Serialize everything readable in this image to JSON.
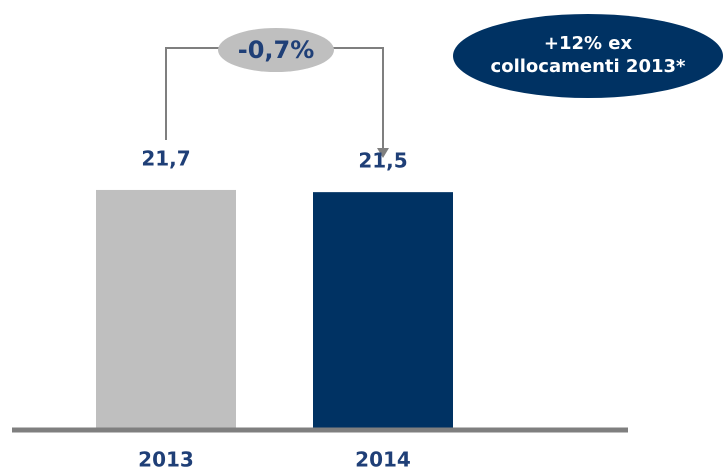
{
  "chart_data": {
    "type": "bar",
    "categories": [
      "2013",
      "2014"
    ],
    "values": [
      21.7,
      21.5
    ],
    "value_labels": [
      "21,7",
      "21,5"
    ],
    "colors": [
      "#bfbfbf",
      "#003263"
    ],
    "annotations": {
      "change": "-0,7%",
      "note": [
        "+12% ex",
        "collocamenti 2013*"
      ]
    }
  }
}
